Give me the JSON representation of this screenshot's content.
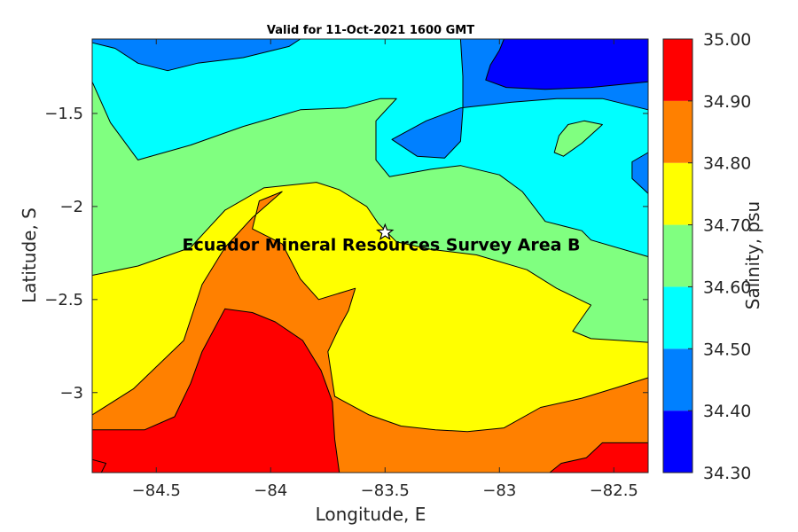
{
  "chart_data": {
    "type": "filled-contour-map",
    "title": "Valid for 11-Oct-2021 1600 GMT",
    "xlabel": "Longitude, E",
    "ylabel": "Latitude, S",
    "xlim": [
      -84.78,
      -82.35
    ],
    "ylim": [
      -3.43,
      -1.1
    ],
    "xticks": [
      -84.5,
      -84,
      -83.5,
      -83,
      -82.5
    ],
    "xtick_labels": [
      "−84.5",
      "−84",
      "−83.5",
      "−83",
      "−82.5"
    ],
    "yticks": [
      -1.5,
      -2,
      -2.5,
      -3
    ],
    "ytick_labels": [
      "−1.5",
      "−2",
      "−2.5",
      "−3"
    ],
    "annotation": {
      "text": "Ecuador Mineral Resources Survey Area B",
      "lon": -83.5,
      "lat": -2.14,
      "marker": "star-icon"
    },
    "colorbar": {
      "label": "Salinity, psu",
      "levels": [
        34.3,
        34.4,
        34.5,
        34.6,
        34.7,
        34.8,
        34.9,
        35.0
      ],
      "level_labels": [
        "34.30",
        "34.40",
        "34.50",
        "34.60",
        "34.70",
        "34.80",
        "34.90",
        "35.00"
      ],
      "colors": [
        "#0000ff",
        "#0080ff",
        "#00ffff",
        "#80ff80",
        "#ffff00",
        "#ff8000",
        "#ff0000"
      ]
    },
    "regions": [
      {
        "name": "34.50-34.60",
        "color": "#00ffff",
        "points": [
          [
            -84.78,
            -1.1
          ],
          [
            -82.35,
            -1.1
          ],
          [
            -82.35,
            -3.43
          ],
          [
            -84.78,
            -3.43
          ]
        ]
      },
      {
        "name": "34.40-34.50 north-west",
        "color": "#0080ff",
        "points": [
          [
            -84.78,
            -1.1
          ],
          [
            -83.87,
            -1.1
          ],
          [
            -83.92,
            -1.14
          ],
          [
            -84.12,
            -1.2
          ],
          [
            -84.32,
            -1.23
          ],
          [
            -84.45,
            -1.27
          ],
          [
            -84.58,
            -1.23
          ],
          [
            -84.68,
            -1.15
          ],
          [
            -84.78,
            -1.12
          ]
        ]
      },
      {
        "name": "34.40-34.50 north-east",
        "color": "#0080ff",
        "points": [
          [
            -83.17,
            -1.1
          ],
          [
            -82.35,
            -1.1
          ],
          [
            -82.35,
            -1.48
          ],
          [
            -82.55,
            -1.42
          ],
          [
            -82.75,
            -1.42
          ],
          [
            -82.95,
            -1.44
          ],
          [
            -83.17,
            -1.47
          ],
          [
            -83.32,
            -1.54
          ],
          [
            -83.47,
            -1.64
          ],
          [
            -83.36,
            -1.73
          ],
          [
            -83.24,
            -1.74
          ],
          [
            -83.17,
            -1.65
          ],
          [
            -83.16,
            -1.48
          ],
          [
            -83.16,
            -1.3
          ]
        ]
      },
      {
        "name": "34.40-34.50 east edge",
        "color": "#0080ff",
        "points": [
          [
            -82.35,
            -1.71
          ],
          [
            -82.42,
            -1.76
          ],
          [
            -82.42,
            -1.85
          ],
          [
            -82.35,
            -1.93
          ]
        ]
      },
      {
        "name": "34.30-34.40",
        "color": "#0000ff",
        "points": [
          [
            -82.98,
            -1.1
          ],
          [
            -82.35,
            -1.1
          ],
          [
            -82.35,
            -1.33
          ],
          [
            -82.6,
            -1.36
          ],
          [
            -82.8,
            -1.37
          ],
          [
            -82.97,
            -1.36
          ],
          [
            -83.06,
            -1.32
          ],
          [
            -83.04,
            -1.24
          ],
          [
            -83.0,
            -1.16
          ]
        ]
      },
      {
        "name": "34.60-34.70",
        "color": "#80ff80",
        "points": [
          [
            -84.78,
            -1.33
          ],
          [
            -84.7,
            -1.55
          ],
          [
            -84.58,
            -1.75
          ],
          [
            -84.35,
            -1.67
          ],
          [
            -84.12,
            -1.57
          ],
          [
            -83.87,
            -1.48
          ],
          [
            -83.67,
            -1.47
          ],
          [
            -83.52,
            -1.42
          ],
          [
            -83.45,
            -1.42
          ],
          [
            -83.54,
            -1.54
          ],
          [
            -83.54,
            -1.75
          ],
          [
            -83.48,
            -1.84
          ],
          [
            -83.3,
            -1.8
          ],
          [
            -83.17,
            -1.78
          ],
          [
            -83.0,
            -1.83
          ],
          [
            -82.9,
            -1.92
          ],
          [
            -82.8,
            -2.08
          ],
          [
            -82.64,
            -2.13
          ],
          [
            -82.6,
            -2.18
          ],
          [
            -82.35,
            -2.27
          ],
          [
            -82.35,
            -3.43
          ],
          [
            -84.78,
            -3.43
          ]
        ]
      },
      {
        "name": "34.60-34.70 island",
        "color": "#80ff80",
        "points": [
          [
            -82.7,
            -1.56
          ],
          [
            -82.63,
            -1.54
          ],
          [
            -82.55,
            -1.56
          ],
          [
            -82.64,
            -1.66
          ],
          [
            -82.72,
            -1.73
          ],
          [
            -82.76,
            -1.71
          ],
          [
            -82.74,
            -1.62
          ]
        ]
      },
      {
        "name": "34.70-34.80",
        "color": "#ffff00",
        "points": [
          [
            -84.78,
            -2.37
          ],
          [
            -84.58,
            -2.32
          ],
          [
            -84.35,
            -2.22
          ],
          [
            -84.2,
            -2.02
          ],
          [
            -84.03,
            -1.9
          ],
          [
            -83.8,
            -1.87
          ],
          [
            -83.7,
            -1.91
          ],
          [
            -83.58,
            -2.0
          ],
          [
            -83.53,
            -2.09
          ],
          [
            -83.45,
            -2.19
          ],
          [
            -83.3,
            -2.23
          ],
          [
            -83.1,
            -2.26
          ],
          [
            -82.88,
            -2.34
          ],
          [
            -82.75,
            -2.44
          ],
          [
            -82.6,
            -2.53
          ],
          [
            -82.68,
            -2.67
          ],
          [
            -82.6,
            -2.71
          ],
          [
            -82.47,
            -2.72
          ],
          [
            -82.35,
            -2.73
          ],
          [
            -82.35,
            -3.43
          ],
          [
            -84.78,
            -3.43
          ]
        ]
      },
      {
        "name": "34.80-34.90",
        "color": "#ff8000",
        "points": [
          [
            -84.78,
            -3.12
          ],
          [
            -84.6,
            -2.98
          ],
          [
            -84.38,
            -2.72
          ],
          [
            -84.3,
            -2.42
          ],
          [
            -84.2,
            -2.22
          ],
          [
            -84.08,
            -2.06
          ],
          [
            -83.95,
            -1.92
          ],
          [
            -84.05,
            -1.97
          ],
          [
            -84.08,
            -2.12
          ],
          [
            -83.95,
            -2.2
          ],
          [
            -83.87,
            -2.39
          ],
          [
            -83.79,
            -2.5
          ],
          [
            -83.63,
            -2.44
          ],
          [
            -83.66,
            -2.56
          ],
          [
            -83.7,
            -2.65
          ],
          [
            -83.75,
            -2.78
          ],
          [
            -83.72,
            -3.02
          ],
          [
            -83.57,
            -3.12
          ],
          [
            -83.43,
            -3.18
          ],
          [
            -83.28,
            -3.2
          ],
          [
            -83.14,
            -3.21
          ],
          [
            -82.98,
            -3.19
          ],
          [
            -82.82,
            -3.08
          ],
          [
            -82.64,
            -3.03
          ],
          [
            -82.48,
            -2.97
          ],
          [
            -82.35,
            -2.92
          ],
          [
            -82.35,
            -3.43
          ],
          [
            -84.78,
            -3.43
          ]
        ]
      },
      {
        "name": "34.90-35.00 main",
        "color": "#ff0000",
        "points": [
          [
            -84.78,
            -3.2
          ],
          [
            -84.55,
            -3.2
          ],
          [
            -84.42,
            -3.13
          ],
          [
            -84.35,
            -2.95
          ],
          [
            -84.3,
            -2.78
          ],
          [
            -84.2,
            -2.55
          ],
          [
            -84.08,
            -2.57
          ],
          [
            -83.98,
            -2.62
          ],
          [
            -83.86,
            -2.72
          ],
          [
            -83.78,
            -2.88
          ],
          [
            -83.73,
            -3.05
          ],
          [
            -83.72,
            -3.25
          ],
          [
            -83.7,
            -3.43
          ],
          [
            -84.78,
            -3.43
          ]
        ]
      },
      {
        "name": "34.90-35.00 south-west",
        "color": "#ff0000",
        "points": [
          [
            -84.78,
            -3.36
          ],
          [
            -84.72,
            -3.38
          ],
          [
            -84.74,
            -3.43
          ],
          [
            -84.78,
            -3.43
          ]
        ]
      },
      {
        "name": "34.90-35.00 south-east",
        "color": "#ff0000",
        "points": [
          [
            -82.35,
            -3.27
          ],
          [
            -82.55,
            -3.27
          ],
          [
            -82.62,
            -3.35
          ],
          [
            -82.73,
            -3.38
          ],
          [
            -82.78,
            -3.43
          ],
          [
            -82.35,
            -3.43
          ]
        ]
      }
    ]
  }
}
